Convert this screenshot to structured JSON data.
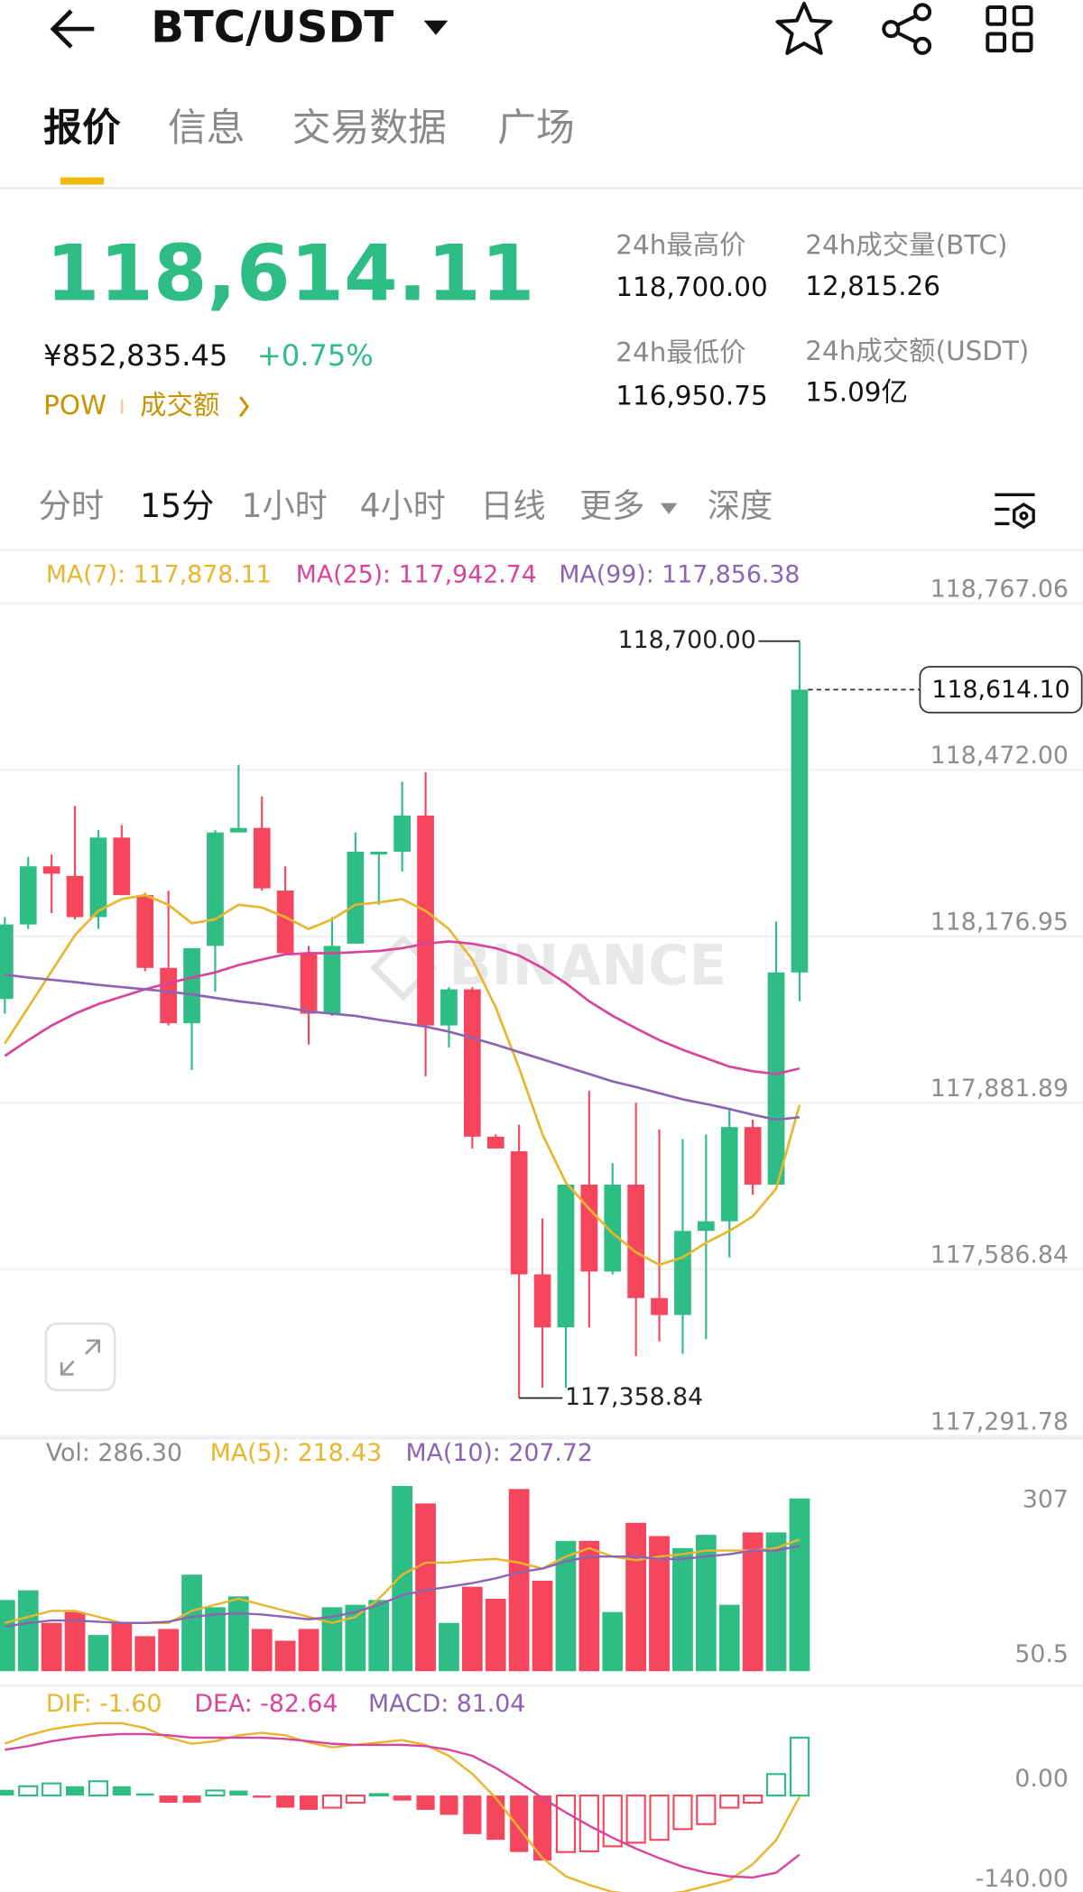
{
  "header": {
    "title": "BTC/USDT"
  },
  "tabs": [
    "报价",
    "信息",
    "交易数据",
    "广场"
  ],
  "ticker": {
    "price": "118,614.11",
    "cny": "¥852,835.45",
    "change": "+0.75%",
    "tag": "POW",
    "link": "成交额"
  },
  "stats": [
    {
      "label": "24h最高价",
      "value": "118,700.00"
    },
    {
      "label": "24h成交量(BTC)",
      "value": "12,815.26"
    },
    {
      "label": "24h最低价",
      "value": "116,950.75"
    },
    {
      "label": "24h成交额(USDT)",
      "value": "15.09亿"
    }
  ],
  "intervals": [
    "分时",
    "15分",
    "1小时",
    "4小时",
    "日线",
    "更多",
    "深度"
  ],
  "chart_data": [
    {
      "type": "candlestick",
      "up_color": "#2ebd85",
      "down_color": "#f6465d",
      "grid": true,
      "watermark": "BINANCE",
      "ylim": [
        117291.78,
        118767.06
      ],
      "yticks": [
        {
          "value": 118767.06,
          "label": "118,767.06"
        },
        {
          "value": 118472.0,
          "label": "118,472.00"
        },
        {
          "value": 118176.95,
          "label": "118,176.95"
        },
        {
          "value": 117881.89,
          "label": "117,881.89"
        },
        {
          "value": 117586.84,
          "label": "117,586.84"
        },
        {
          "value": 117291.78,
          "label": "117,291.78"
        }
      ],
      "open": [
        118066,
        118198,
        118301,
        118284,
        118211,
        118352,
        118250,
        118121,
        118023,
        118160,
        118361,
        118369,
        118258,
        118147,
        118040,
        118164,
        118322,
        118327,
        118391,
        118019,
        118083,
        117822,
        117796,
        117578,
        117484,
        117737,
        117583,
        117737,
        117536,
        117506,
        117655,
        117672,
        117839,
        117737,
        118113
      ],
      "high": [
        118211,
        118318,
        118322,
        118408,
        118365,
        118374,
        118254,
        118258,
        118156,
        118365,
        118481,
        118425,
        118301,
        118160,
        118211,
        118361,
        118327,
        118451,
        118468,
        118087,
        118087,
        117826,
        117843,
        117677,
        117737,
        117903,
        117775,
        117882,
        117835,
        117818,
        117826,
        117869,
        117852,
        118203,
        118700
      ],
      "low": [
        118040,
        118190,
        118218,
        118207,
        118190,
        118250,
        118115,
        118019,
        117940,
        118079,
        118361,
        118258,
        118147,
        117985,
        118036,
        118164,
        118233,
        118292,
        117929,
        117980,
        117801,
        117801,
        117358.84,
        117377,
        117377,
        117484,
        117578,
        117433,
        117459,
        117437,
        117463,
        117608,
        117719,
        117737,
        118062
      ],
      "close": [
        118198,
        118301,
        118288,
        118211,
        118352,
        118250,
        118121,
        118023,
        118156,
        118361,
        118369,
        118262,
        118147,
        118040,
        118160,
        118327,
        118327,
        118391,
        118019,
        118083,
        117822,
        117801,
        117578,
        117484,
        117737,
        117583,
        117737,
        117536,
        117506,
        117655,
        117672,
        117839,
        117737,
        118113,
        118614.1
      ],
      "max_label": "118,700.00",
      "min_label": "117,358.84",
      "last_label": "118,614.10",
      "series": [
        {
          "name": "MA(7)",
          "label": "MA(7): 117,878.11",
          "color": "#e9b52f",
          "values": [
            117987,
            118051,
            118115,
            118179,
            118222,
            118243,
            118250,
            118233,
            118200,
            118207,
            118233,
            118228,
            118211,
            118190,
            118207,
            118233,
            118237,
            118243,
            118222,
            118190,
            118136,
            118051,
            117944,
            117826,
            117741,
            117694,
            117651,
            117617,
            117595,
            117608,
            117634,
            117655,
            117681,
            117730,
            117878.11
          ]
        },
        {
          "name": "MA(25)",
          "label": "MA(25): 117,942.74",
          "color": "#d8439c",
          "values": [
            117965,
            117993,
            118019,
            118040,
            118057,
            118070,
            118083,
            118094,
            118104,
            118113,
            118126,
            118136,
            118145,
            118147,
            118147,
            118149,
            118151,
            118156,
            118164,
            118168,
            118164,
            118156,
            118143,
            118121,
            118094,
            118062,
            118036,
            118014,
            117993,
            117976,
            117961,
            117946,
            117938,
            117933,
            117942.74
          ]
        },
        {
          "name": "MA(99)",
          "label": "MA(99): 117,856.38",
          "color": "#8b64b3",
          "values": [
            118109,
            118104,
            118100,
            118096,
            118091,
            118087,
            118083,
            118079,
            118074,
            118068,
            118062,
            118057,
            118051,
            118044,
            118040,
            118036,
            118029,
            118023,
            118017,
            118008,
            117997,
            117985,
            117972,
            117959,
            117946,
            117933,
            117920,
            117910,
            117899,
            117888,
            117880,
            117871,
            117861,
            117852,
            117856.38
          ]
        }
      ]
    },
    {
      "type": "bar",
      "label": "Vol: 286.30",
      "up_color": "#2ebd85",
      "down_color": "#f6465d",
      "ylim": [
        0,
        380
      ],
      "yticks": [
        307,
        50.5
      ],
      "values": [
        118,
        134,
        80,
        98,
        60,
        80,
        58,
        70,
        160,
        106,
        124,
        70,
        50.5,
        70,
        106,
        110,
        118,
        307,
        278,
        80,
        140,
        120,
        302,
        150,
        216,
        216,
        98,
        246,
        224,
        204,
        226,
        110,
        230,
        230,
        286.3
      ],
      "series": [
        {
          "name": "MA(5)",
          "label": "MA(5): 218.43",
          "color": "#e9b52f",
          "values": [
            80,
            90,
            100,
            100,
            90,
            80,
            80,
            80,
            100,
            110,
            120,
            110,
            100,
            90,
            80,
            90,
            120,
            160,
            180,
            180,
            184,
            186,
            180,
            170,
            190,
            204,
            190,
            184,
            190,
            194,
            200,
            200,
            200,
            204,
            218.43
          ]
        },
        {
          "name": "MA(10)",
          "label": "MA(10): 207.72",
          "color": "#8b64b3",
          "values": [
            74,
            80,
            84,
            84,
            82,
            80,
            80,
            82,
            90,
            94,
            96,
            94,
            90,
            86,
            90,
            98,
            110,
            126,
            134,
            140,
            146,
            154,
            164,
            170,
            182,
            190,
            190,
            190,
            186,
            186,
            190,
            194,
            200,
            200,
            207.72
          ]
        }
      ]
    },
    {
      "type": "macd",
      "label": "MACD: 81.04",
      "label_color": "#8b64b3",
      "up_color": "#2ebd85",
      "down_color": "#f6465d",
      "ylim": [
        -140,
        152
      ],
      "yticks": [
        {
          "value": 0,
          "label": "0.00"
        },
        {
          "value": -140,
          "label": "-140.00"
        }
      ],
      "values": [
        8,
        13,
        17,
        13,
        20,
        13,
        3,
        -10,
        -10,
        7,
        7,
        -3,
        -17,
        -20,
        -17,
        -10,
        2,
        -7,
        -20,
        -27,
        -54,
        -62,
        -79,
        -91,
        -79,
        -78,
        -71,
        -66,
        -62,
        -47,
        -40,
        -17,
        -10,
        30,
        81.04
      ],
      "series": [
        {
          "name": "DIF",
          "label": "DIF: -1.60",
          "color": "#e9b52f",
          "values": [
            72.5,
            84.3,
            92.7,
            97.8,
            101.2,
            101.2,
            94.4,
            80.9,
            72.5,
            75.9,
            84.3,
            87.7,
            84.3,
            74.2,
            67.4,
            70.8,
            74.2,
            77.6,
            70.8,
            55.6,
            30.3,
            -3.4,
            -45.5,
            -87.7,
            -113,
            -124.9,
            -135,
            -138.3,
            -138.3,
            -135,
            -126.5,
            -118,
            -96.1,
            -62.4,
            -1.6
          ]
        },
        {
          "name": "DEA",
          "label": "DEA: -82.64",
          "color": "#d8439c",
          "values": [
            64.1,
            69.1,
            75.9,
            80.9,
            84.3,
            86,
            86,
            84.3,
            80.9,
            80.9,
            80.9,
            80.9,
            79.2,
            75.9,
            72.5,
            70.8,
            70.8,
            70.8,
            69.1,
            64.1,
            55.6,
            38.8,
            18.5,
            -3.4,
            -23.6,
            -42.2,
            -59,
            -74.2,
            -87.7,
            -99.5,
            -107.9,
            -113,
            -114.7,
            -107.9,
            -82.64
          ]
        }
      ]
    }
  ]
}
